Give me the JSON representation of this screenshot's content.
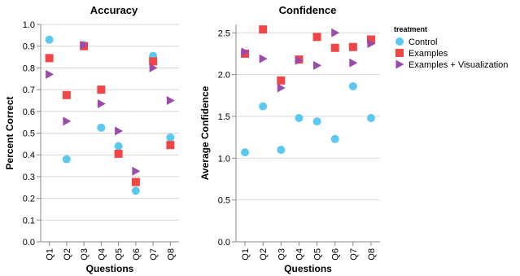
{
  "legend": {
    "title": "treatment",
    "placement": "top-right"
  },
  "colors": {
    "Control": "#5bc8f0",
    "Examples": "#f04646",
    "Examples + Visualization": "#9b4bab"
  },
  "chart_data": [
    {
      "type": "scatter",
      "title": "Accuracy",
      "xlabel": "Questions",
      "ylabel": "Percent Correct",
      "categories": [
        "Q1",
        "Q2",
        "Q3",
        "Q4",
        "Q5",
        "Q6",
        "Q7",
        "Q8"
      ],
      "ylim": [
        0,
        1.0
      ],
      "yticks": [
        "0.0",
        "0.1",
        "0.2",
        "0.3",
        "0.4",
        "0.5",
        "0.6",
        "0.7",
        "0.8",
        "0.9",
        "1.0"
      ],
      "grid": true,
      "series": [
        {
          "name": "Control",
          "marker": "circle",
          "values": [
            0.93,
            0.38,
            0.905,
            0.525,
            0.44,
            0.235,
            0.855,
            0.48
          ]
        },
        {
          "name": "Examples",
          "marker": "square",
          "values": [
            0.845,
            0.675,
            0.9,
            0.7,
            0.405,
            0.275,
            0.83,
            0.445
          ]
        },
        {
          "name": "Examples + Visualization",
          "marker": "triangle-right",
          "values": [
            0.77,
            0.555,
            0.905,
            0.635,
            0.51,
            0.325,
            0.8,
            0.65
          ]
        }
      ]
    },
    {
      "type": "scatter",
      "title": "Confidence",
      "xlabel": "Questions",
      "ylabel": "Average Confidence",
      "categories": [
        "Q1",
        "Q2",
        "Q3",
        "Q4",
        "Q5",
        "Q6",
        "Q7",
        "Q8"
      ],
      "ylim": [
        0,
        2.6
      ],
      "yticks": [
        "0.0",
        "0.5",
        "1.0",
        "1.5",
        "2.0",
        "2.5"
      ],
      "grid": true,
      "series": [
        {
          "name": "Control",
          "marker": "circle",
          "values": [
            1.07,
            1.62,
            1.1,
            1.48,
            1.44,
            1.23,
            1.86,
            1.48
          ]
        },
        {
          "name": "Examples",
          "marker": "square",
          "values": [
            2.25,
            2.54,
            1.93,
            2.18,
            2.45,
            2.32,
            2.33,
            2.42
          ]
        },
        {
          "name": "Examples + Visualization",
          "marker": "triangle-right",
          "values": [
            2.27,
            2.19,
            1.84,
            2.17,
            2.11,
            2.5,
            2.14,
            2.37
          ]
        }
      ]
    }
  ]
}
